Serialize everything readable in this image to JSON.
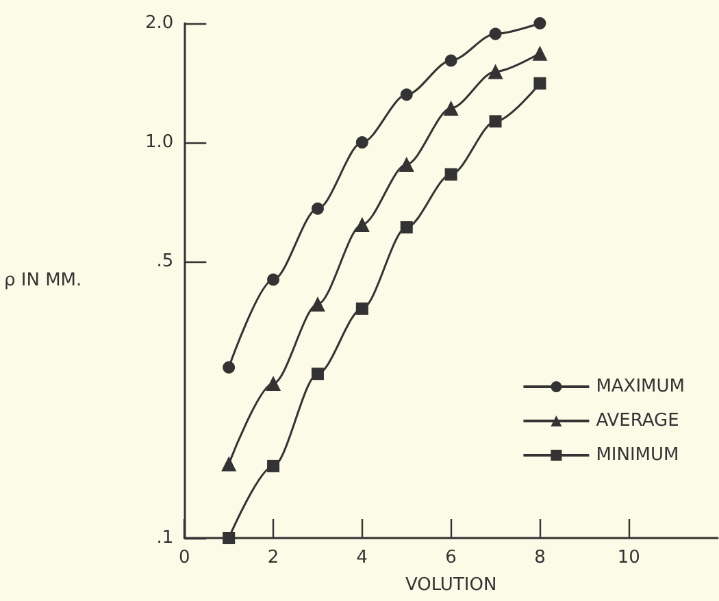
{
  "chart_data": {
    "type": "line",
    "xlabel": "VOLUTION",
    "ylabel": "ρ IN MM.",
    "x": [
      1,
      2,
      3,
      4,
      5,
      6,
      7,
      8
    ],
    "series": [
      {
        "name": "MAXIMUM",
        "color": "#333333",
        "marker": "circle",
        "values": [
          0.27,
          0.45,
          0.68,
          1.0,
          1.32,
          1.61,
          1.88,
          2.0
        ]
      },
      {
        "name": "AVERAGE",
        "color": "#333333",
        "marker": "triangle",
        "values": [
          0.154,
          0.246,
          0.39,
          0.62,
          0.88,
          1.22,
          1.51,
          1.68
        ]
      },
      {
        "name": "MINIMUM",
        "color": "#333333",
        "marker": "square",
        "values": [
          0.1,
          0.152,
          0.26,
          0.38,
          0.61,
          0.83,
          1.13,
          1.41
        ]
      }
    ],
    "xlim": [
      0,
      12
    ],
    "xticks": [
      0,
      2,
      4,
      6,
      8,
      10
    ],
    "ylim": [
      0.1,
      2.0
    ],
    "yticks": [
      {
        "value": 0.1,
        "label": ".1"
      },
      {
        "value": 0.5,
        "label": ".5"
      },
      {
        "value": 1.0,
        "label": "1.0"
      },
      {
        "value": 2.0,
        "label": "2.0"
      }
    ],
    "log": "y",
    "grid": false,
    "legend": "bottom right",
    "line_style": "solid"
  }
}
